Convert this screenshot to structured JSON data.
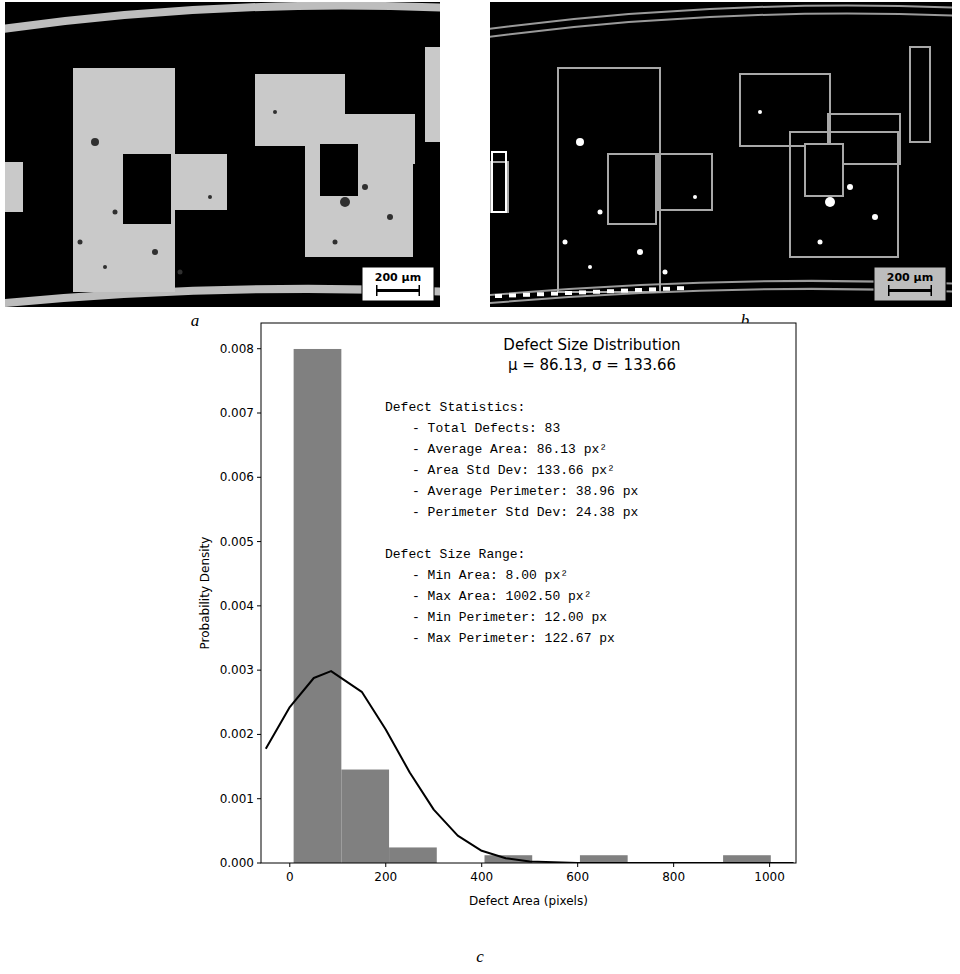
{
  "figure": {
    "panel_labels": [
      "a",
      "b",
      "c"
    ],
    "scale_bars": [
      "200 µm",
      "200 µm"
    ]
  },
  "chart_data": {
    "type": "histogram",
    "title": "Defect Size Distribution",
    "subtitle": "μ = 86.13, σ = 133.66",
    "x_label": "Defect Area (pixels)",
    "y_label": "Probability Density",
    "bins": [
      8,
      107.45,
      206.9,
      306.35,
      405.8,
      505.25,
      604.7,
      704.15,
      803.6,
      903.05,
      1002.5
    ],
    "values": [
      0.007996,
      0.001454,
      0.000242,
      0,
      0.000121,
      0,
      0.000121,
      0,
      0,
      0.000121
    ],
    "color": "#808080",
    "series": [
      {
        "type": "line",
        "color": "#000000",
        "x": [
          -50,
          0,
          50,
          86,
          150,
          200,
          250,
          300,
          350,
          400,
          450,
          500,
          600,
          800,
          1050
        ],
        "values": [
          0.001777,
          0.002425,
          0.002878,
          0.002985,
          0.002663,
          0.002077,
          0.001408,
          0.00083,
          0.000425,
          0.00019,
          7.34e-05,
          2.47e-05,
          1.8e-06,
          0,
          0
        ]
      }
    ],
    "annotations": [
      {
        "heading": "Defect Statistics:",
        "items": [
          "- Total Defects: 83",
          "- Average Area: 86.13 px²",
          "- Area Std Dev: 133.66 px²",
          "- Average Perimeter: 38.96 px",
          "- Perimeter Std Dev: 24.38 px"
        ]
      },
      {
        "heading": "Defect Size Range:",
        "items": [
          "- Min Area: 8.00 px²",
          "- Max Area: 1002.50 px²",
          "- Min Perimeter: 12.00 px",
          "- Max Perimeter: 122.67 px"
        ]
      }
    ],
    "xlim": [
      -60,
      1055
    ],
    "ylim": [
      0,
      0.0084
    ],
    "xticks": [
      0,
      200,
      400,
      600,
      800,
      1000
    ],
    "yticks": [
      {
        "value": 0,
        "label": "0.000"
      },
      {
        "value": 0.001,
        "label": "0.001"
      },
      {
        "value": 0.002,
        "label": "0.002"
      },
      {
        "value": 0.003,
        "label": "0.003"
      },
      {
        "value": 0.004,
        "label": "0.004"
      },
      {
        "value": 0.005,
        "label": "0.005"
      },
      {
        "value": 0.006,
        "label": "0.006"
      },
      {
        "value": 0.007,
        "label": "0.007"
      },
      {
        "value": 0.008,
        "label": "0.008"
      }
    ]
  }
}
